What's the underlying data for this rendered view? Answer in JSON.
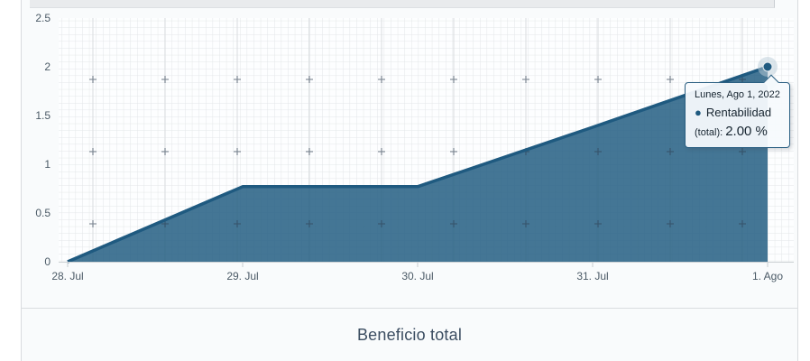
{
  "chart_data": {
    "type": "area",
    "title": "Beneficio total",
    "xlabel": "",
    "ylabel": "",
    "x_ticks": [
      "28. Jul",
      "29. Jul",
      "30. Jul",
      "31. Jul",
      "1. Ago"
    ],
    "y_ticks": [
      "0",
      "0.5",
      "1",
      "1.5",
      "2",
      "2.5"
    ],
    "ylim": [
      0,
      2.5
    ],
    "grid": "fine graph-paper minor grid, faint major verticals and plus-cross marks every major intersection",
    "legend_position": "none",
    "series": [
      {
        "name": "Rentabilidad (total)",
        "unit": "%",
        "color": "#1f5a80",
        "x": [
          "28. Jul",
          "29. Jul",
          "30. Jul",
          "31. Jul",
          "1. Ago"
        ],
        "values": [
          0,
          0.77,
          0.77,
          1.38,
          2.0
        ]
      }
    ]
  },
  "tooltip": {
    "header": "Lunes, Ago 1, 2022",
    "marker_icon": "●",
    "series_name": "Rentabilidad",
    "value_prefix": "(total):",
    "value": "2.00 %"
  },
  "footer": {
    "title": "Beneficio total"
  },
  "colors": {
    "line": "#1f5a80",
    "area_fill": "#235e83",
    "area_opacity": 0.85,
    "marker": "#1f5a80",
    "marker_halo": "#b9cbd8",
    "tooltip_border": "#2a5f82",
    "axis_text": "#4b5a66"
  }
}
